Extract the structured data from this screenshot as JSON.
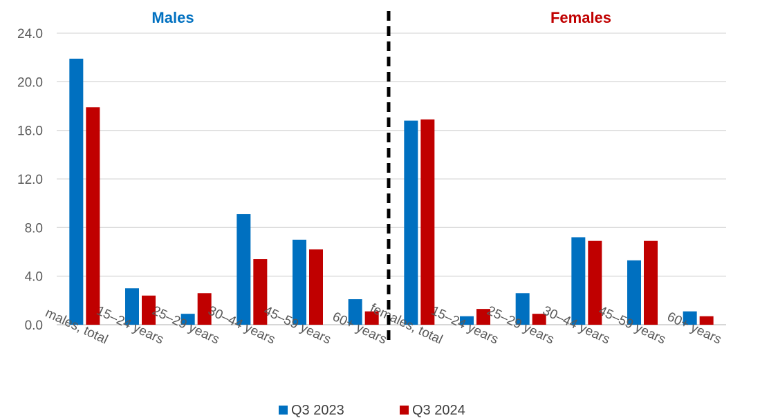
{
  "chart_data": {
    "type": "bar",
    "groups": [
      {
        "title": "Males",
        "color": "#0070C0"
      },
      {
        "title": "Females",
        "color": "#C00000"
      }
    ],
    "categories": [
      "males, total",
      "15–24 years",
      "25–29 years",
      "30–44 years",
      "45–59 years",
      "60+ years",
      "females, total",
      "15–24 years",
      "25–29 years",
      "30–44 years",
      "45–59 years",
      "60+ years"
    ],
    "series": [
      {
        "name": "Q3 2023",
        "color": "#0070C0",
        "values": [
          21.9,
          3.0,
          0.9,
          9.1,
          7.0,
          2.1,
          16.8,
          0.7,
          2.6,
          7.2,
          5.3,
          1.1
        ]
      },
      {
        "name": "Q3 2024",
        "color": "#C00000",
        "values": [
          17.9,
          2.4,
          2.6,
          5.4,
          6.2,
          1.1,
          16.9,
          1.3,
          0.9,
          6.9,
          6.9,
          0.7
        ]
      }
    ],
    "yticks": [
      "0.0",
      "4.0",
      "8.0",
      "12.0",
      "16.0",
      "20.0",
      "24.0"
    ],
    "ylim": [
      0,
      24
    ],
    "grid": true,
    "divider_after_index": 5,
    "legend_position": "bottom"
  }
}
